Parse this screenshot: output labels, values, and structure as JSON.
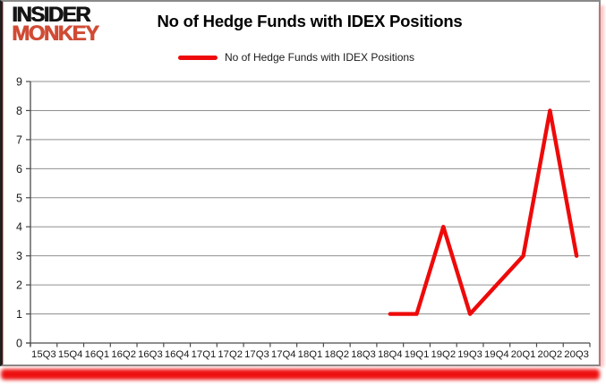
{
  "logo": {
    "line1": "INSIDER",
    "line2": "MONKEY"
  },
  "header": {
    "title": "No of Hedge Funds with IDEX Positions"
  },
  "legend": {
    "label": "No of Hedge Funds with IDEX Positions"
  },
  "colors": {
    "series_red": "#ee0a0a",
    "logo_black": "#141414",
    "logo_red": "#d04b35",
    "grid": "#8f8f8f",
    "axis": "#4a4a4a",
    "tick_text": "#1a1a1a",
    "shadow_band": "#ed0f0f"
  },
  "chart_data": {
    "type": "line",
    "title": "No of Hedge Funds with IDEX Positions",
    "categories": [
      "15Q3",
      "15Q4",
      "16Q1",
      "16Q2",
      "16Q3",
      "16Q4",
      "17Q1",
      "17Q2",
      "17Q3",
      "17Q4",
      "18Q1",
      "18Q2",
      "18Q3",
      "18Q4",
      "19Q1",
      "19Q2",
      "19Q3",
      "19Q4",
      "20Q1",
      "20Q2",
      "20Q3"
    ],
    "series": [
      {
        "name": "No of Hedge Funds with IDEX Positions",
        "values": [
          null,
          null,
          null,
          null,
          null,
          null,
          null,
          null,
          null,
          null,
          null,
          null,
          null,
          1,
          1,
          4,
          1,
          2,
          3,
          8,
          3
        ]
      }
    ],
    "xlabel": "",
    "ylabel": "",
    "ylim": [
      0,
      9
    ],
    "yticks": [
      0,
      1,
      2,
      3,
      4,
      5,
      6,
      7,
      8,
      9
    ],
    "grid": true,
    "legend_position": "top-center",
    "line_width": 4.4
  }
}
